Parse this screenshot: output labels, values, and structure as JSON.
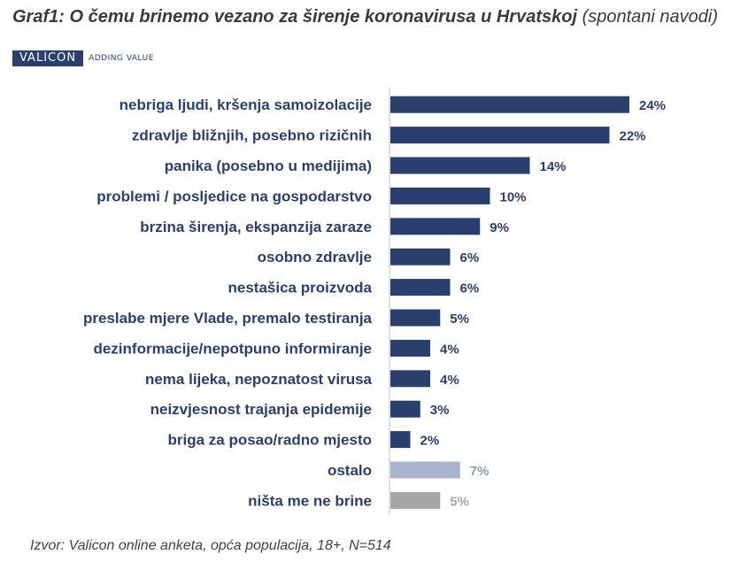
{
  "header": {
    "title": "Graf1: O čemu brinemo vezano za širenje koronavirusa u Hrvatskoj",
    "subtitle": "(spontani navodi)"
  },
  "logo": {
    "name": "VALICON",
    "tagline": "ADDING VALUE"
  },
  "source": "Izvor: Valicon online anketa, opća populacija, 18+, N=514",
  "colors": {
    "main": "#2a3f6e",
    "ostalo": "#a9b4cd",
    "nista": "#a6a6a6"
  },
  "chart_data": {
    "type": "bar",
    "orientation": "horizontal",
    "categories": [
      "nebriga ljudi, kršenja samoizolacije",
      "zdravlje bližnjih, posebno rizičnih",
      "panika (posebno u medijima)",
      "problemi / posljedice na gospodarstvo",
      "brzina širenja, ekspanzija zaraze",
      "osobno zdravlje",
      "nestašica proizvoda",
      "preslabe mjere Vlade, premalo testiranja",
      "dezinformacije/nepotpuno informiranje",
      "nema lijeka, nepoznatost virusa",
      "neizvjesnost trajanja epidemije",
      "briga za posao/radno mjesto",
      "ostalo",
      "ništa me ne brine"
    ],
    "values": [
      24,
      22,
      14,
      10,
      9,
      6,
      6,
      5,
      4,
      4,
      3,
      2,
      7,
      5
    ],
    "labels": [
      "24%",
      "22%",
      "14%",
      "10%",
      "9%",
      "6%",
      "6%",
      "5%",
      "4%",
      "4%",
      "3%",
      "2%",
      "7%",
      "5%"
    ],
    "bar_colors": [
      "#2a3f6e",
      "#2a3f6e",
      "#2a3f6e",
      "#2a3f6e",
      "#2a3f6e",
      "#2a3f6e",
      "#2a3f6e",
      "#2a3f6e",
      "#2a3f6e",
      "#2a3f6e",
      "#2a3f6e",
      "#2a3f6e",
      "#a9b4cd",
      "#a6a6a6"
    ],
    "xlim": [
      0,
      24
    ],
    "unit": "%",
    "grid": false,
    "legend": "none"
  }
}
